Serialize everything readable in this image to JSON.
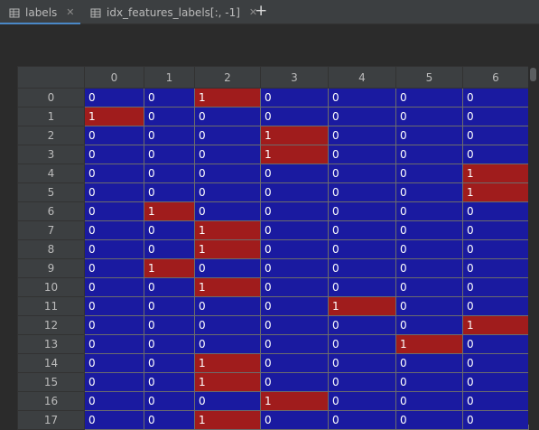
{
  "tabs": [
    {
      "label": "labels",
      "icon": "table-icon",
      "active": true
    },
    {
      "label": "idx_features_labels[:, -1]",
      "icon": "table-icon",
      "active": false
    }
  ],
  "close_glyph": "✕",
  "add_glyph": "+",
  "table": {
    "columns": [
      "0",
      "1",
      "2",
      "3",
      "4",
      "5",
      "6"
    ],
    "rows": [
      {
        "index": "0",
        "cells": [
          "0",
          "0",
          "1",
          "0",
          "0",
          "0",
          "0"
        ]
      },
      {
        "index": "1",
        "cells": [
          "1",
          "0",
          "0",
          "0",
          "0",
          "0",
          "0"
        ]
      },
      {
        "index": "2",
        "cells": [
          "0",
          "0",
          "0",
          "1",
          "0",
          "0",
          "0"
        ]
      },
      {
        "index": "3",
        "cells": [
          "0",
          "0",
          "0",
          "1",
          "0",
          "0",
          "0"
        ]
      },
      {
        "index": "4",
        "cells": [
          "0",
          "0",
          "0",
          "0",
          "0",
          "0",
          "1"
        ]
      },
      {
        "index": "5",
        "cells": [
          "0",
          "0",
          "0",
          "0",
          "0",
          "0",
          "1"
        ]
      },
      {
        "index": "6",
        "cells": [
          "0",
          "1",
          "0",
          "0",
          "0",
          "0",
          "0"
        ]
      },
      {
        "index": "7",
        "cells": [
          "0",
          "0",
          "1",
          "0",
          "0",
          "0",
          "0"
        ]
      },
      {
        "index": "8",
        "cells": [
          "0",
          "0",
          "1",
          "0",
          "0",
          "0",
          "0"
        ]
      },
      {
        "index": "9",
        "cells": [
          "0",
          "1",
          "0",
          "0",
          "0",
          "0",
          "0"
        ]
      },
      {
        "index": "10",
        "cells": [
          "0",
          "0",
          "1",
          "0",
          "0",
          "0",
          "0"
        ]
      },
      {
        "index": "11",
        "cells": [
          "0",
          "0",
          "0",
          "0",
          "1",
          "0",
          "0"
        ]
      },
      {
        "index": "12",
        "cells": [
          "0",
          "0",
          "0",
          "0",
          "0",
          "0",
          "1"
        ]
      },
      {
        "index": "13",
        "cells": [
          "0",
          "0",
          "0",
          "0",
          "0",
          "1",
          "0"
        ]
      },
      {
        "index": "14",
        "cells": [
          "0",
          "0",
          "1",
          "0",
          "0",
          "0",
          "0"
        ]
      },
      {
        "index": "15",
        "cells": [
          "0",
          "0",
          "1",
          "0",
          "0",
          "0",
          "0"
        ]
      },
      {
        "index": "16",
        "cells": [
          "0",
          "0",
          "0",
          "1",
          "0",
          "0",
          "0"
        ]
      },
      {
        "index": "17",
        "cells": [
          "0",
          "0",
          "1",
          "0",
          "0",
          "0",
          "0"
        ]
      }
    ]
  },
  "colors": {
    "zero_cell": "#1a1aa0",
    "one_cell": "#a01c1c",
    "accent": "#4a88c7"
  }
}
